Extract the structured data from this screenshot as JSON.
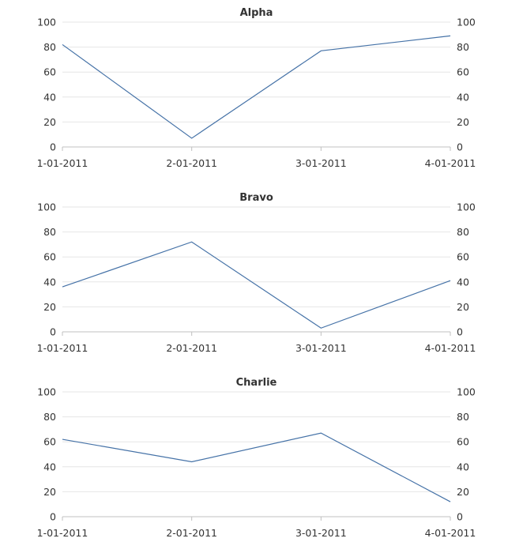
{
  "chart_data": [
    {
      "type": "line",
      "title": "Alpha",
      "categories": [
        "1-01-2011",
        "2-01-2011",
        "3-01-2011",
        "4-01-2011"
      ],
      "series": [
        {
          "values": [
            82,
            7,
            77,
            89
          ]
        }
      ],
      "ylim": [
        0,
        100
      ],
      "yticks": [
        0,
        20,
        40,
        60,
        80,
        100
      ],
      "y_axis_both_sides": true,
      "grid": true,
      "color": "#4572a7"
    },
    {
      "type": "line",
      "title": "Bravo",
      "categories": [
        "1-01-2011",
        "2-01-2011",
        "3-01-2011",
        "4-01-2011"
      ],
      "series": [
        {
          "values": [
            36,
            72,
            3,
            41
          ]
        }
      ],
      "ylim": [
        0,
        100
      ],
      "yticks": [
        0,
        20,
        40,
        60,
        80,
        100
      ],
      "y_axis_both_sides": true,
      "grid": true,
      "color": "#4572a7"
    },
    {
      "type": "line",
      "title": "Charlie",
      "categories": [
        "1-01-2011",
        "2-01-2011",
        "3-01-2011",
        "4-01-2011"
      ],
      "series": [
        {
          "values": [
            62,
            44,
            67,
            12
          ]
        }
      ],
      "ylim": [
        0,
        100
      ],
      "yticks": [
        0,
        20,
        40,
        60,
        80,
        100
      ],
      "y_axis_both_sides": true,
      "grid": true,
      "color": "#4572a7"
    }
  ]
}
